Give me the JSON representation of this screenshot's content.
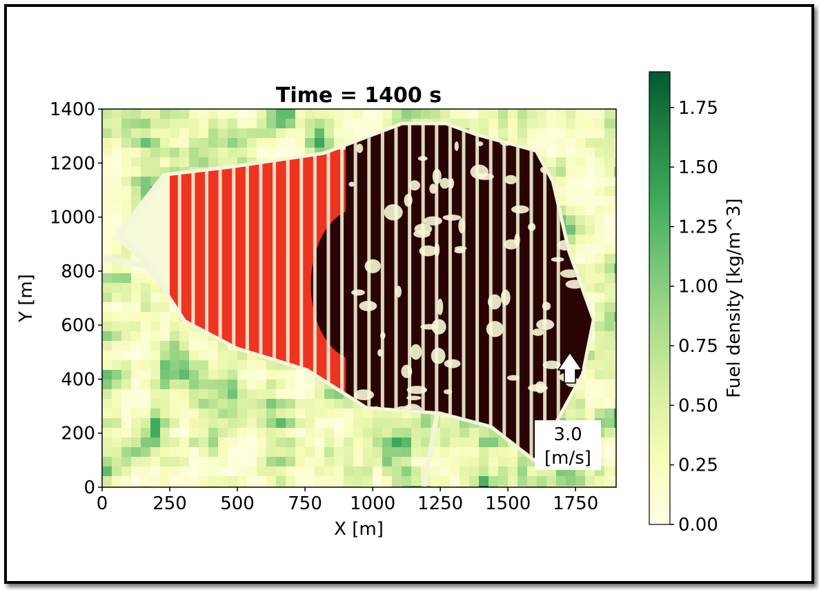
{
  "chart_data": {
    "type": "heatmap",
    "title": "Time = 1400 s",
    "xlabel": "X [m]",
    "ylabel": "Y [m]",
    "xlim": [
      0,
      1900
    ],
    "ylim": [
      0,
      1400
    ],
    "xticks": [
      "0",
      "250",
      "500",
      "750",
      "1000",
      "1250",
      "1500",
      "1750"
    ],
    "yticks": [
      "0",
      "200",
      "400",
      "600",
      "800",
      "1000",
      "1200",
      "1400"
    ],
    "xtick_values": [
      0,
      250,
      500,
      750,
      1000,
      1250,
      1500,
      1750
    ],
    "ytick_values": [
      0,
      200,
      400,
      600,
      800,
      1000,
      1200,
      1400
    ],
    "colorbar": {
      "label": "Fuel density [kg/m^3]",
      "range": [
        0,
        1.9
      ],
      "ticks": [
        "0.00",
        "0.25",
        "0.50",
        "0.75",
        "1.00",
        "1.25",
        "1.50",
        "1.75"
      ],
      "tick_values": [
        0,
        0.25,
        0.5,
        0.75,
        1.0,
        1.25,
        1.5,
        1.75
      ],
      "colormap": "YlGn",
      "colors": [
        "#ffffe5",
        "#f7fcb9",
        "#d9f0a3",
        "#addd8e",
        "#78c679",
        "#41ab5d",
        "#238443",
        "#005a32"
      ]
    },
    "burn_perimeter": [
      [
        60,
        930
      ],
      [
        230,
        1150
      ],
      [
        480,
        1180
      ],
      [
        820,
        1230
      ],
      [
        1110,
        1340
      ],
      [
        1270,
        1340
      ],
      [
        1380,
        1300
      ],
      [
        1600,
        1240
      ],
      [
        1660,
        1130
      ],
      [
        1720,
        870
      ],
      [
        1810,
        620
      ],
      [
        1770,
        420
      ],
      [
        1660,
        220
      ],
      [
        1620,
        90
      ],
      [
        1440,
        230
      ],
      [
        1250,
        280
      ],
      [
        980,
        300
      ],
      [
        760,
        440
      ],
      [
        500,
        520
      ],
      [
        310,
        620
      ],
      [
        180,
        820
      ]
    ],
    "burned_region_color": "#2a0404",
    "active_fire_color": "#ee2211",
    "wind": {
      "speed_label": "3.0",
      "unit_label": "[m/s]",
      "direction": "north"
    }
  }
}
